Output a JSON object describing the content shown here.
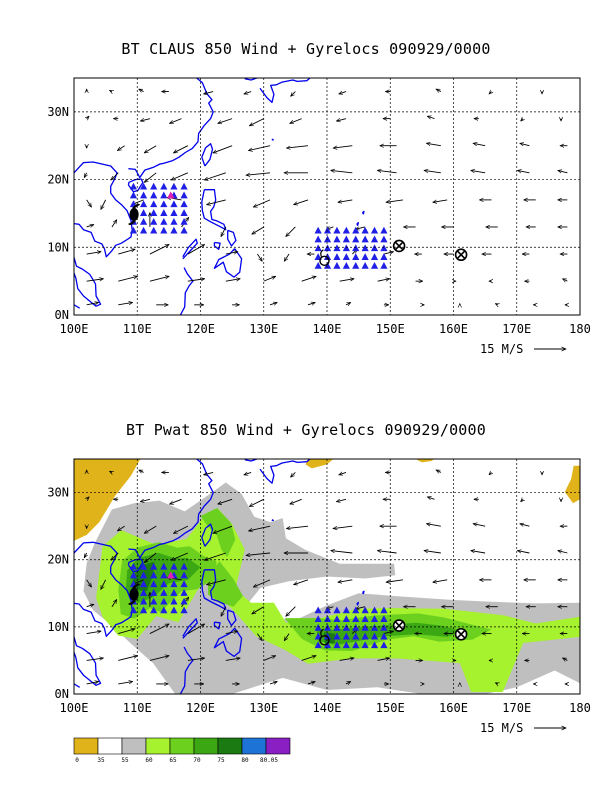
{
  "chart_data": [
    {
      "type": "vector-map",
      "title": "BT CLAUS 850 Wind + Gyrelocs 090929/0000",
      "xlim": [
        100,
        180
      ],
      "ylim": [
        0,
        35
      ],
      "xticks": [
        "100E",
        "110E",
        "120E",
        "130E",
        "140E",
        "150E",
        "160E",
        "170E",
        "180"
      ],
      "yticks": [
        "0N",
        "10N",
        "20N",
        "30N"
      ],
      "grid": "dashed",
      "reference_vector": "15 M/S",
      "markers": {
        "typhoon_symbol": {
          "lon": 109.5,
          "lat": 15.0
        },
        "magenta_triangle": {
          "lon": 115.3,
          "lat": 17.7
        },
        "open_circle": {
          "lon": 139.6,
          "lat": 8.0
        },
        "circle_x": [
          {
            "lon": 151.4,
            "lat": 10.2
          },
          {
            "lon": 161.2,
            "lat": 8.9
          }
        ],
        "triangle_cluster": [
          {
            "lon_min": 109.4,
            "lon_max": 117.4,
            "lat_min": 12.5,
            "lat_max": 19.0
          },
          {
            "lon_min": 138.6,
            "lon_max": 149.0,
            "lat_min": 7.3,
            "lat_max": 12.5
          }
        ]
      }
    },
    {
      "type": "vector-map",
      "title": "BT Pwat 850 Wind + Gyrelocs 090929/0000",
      "xlim": [
        100,
        180
      ],
      "ylim": [
        0,
        35
      ],
      "xticks": [
        "100E",
        "110E",
        "120E",
        "130E",
        "140E",
        "150E",
        "160E",
        "170E",
        "180"
      ],
      "yticks": [
        "0N",
        "10N",
        "20N",
        "30N"
      ],
      "grid": "dashed",
      "reference_vector": "15 M/S",
      "colorbar": {
        "labels": [
          "0",
          "35",
          "55",
          "60",
          "65",
          "70",
          "75",
          "80",
          "80.05"
        ],
        "colors": [
          "#e1b31a",
          "#ffffff",
          "#bfbfbf",
          "#a6f22e",
          "#6cd11e",
          "#3aa713",
          "#1b7a12",
          "#1e74d6",
          "#8a1fc4"
        ]
      }
    }
  ]
}
